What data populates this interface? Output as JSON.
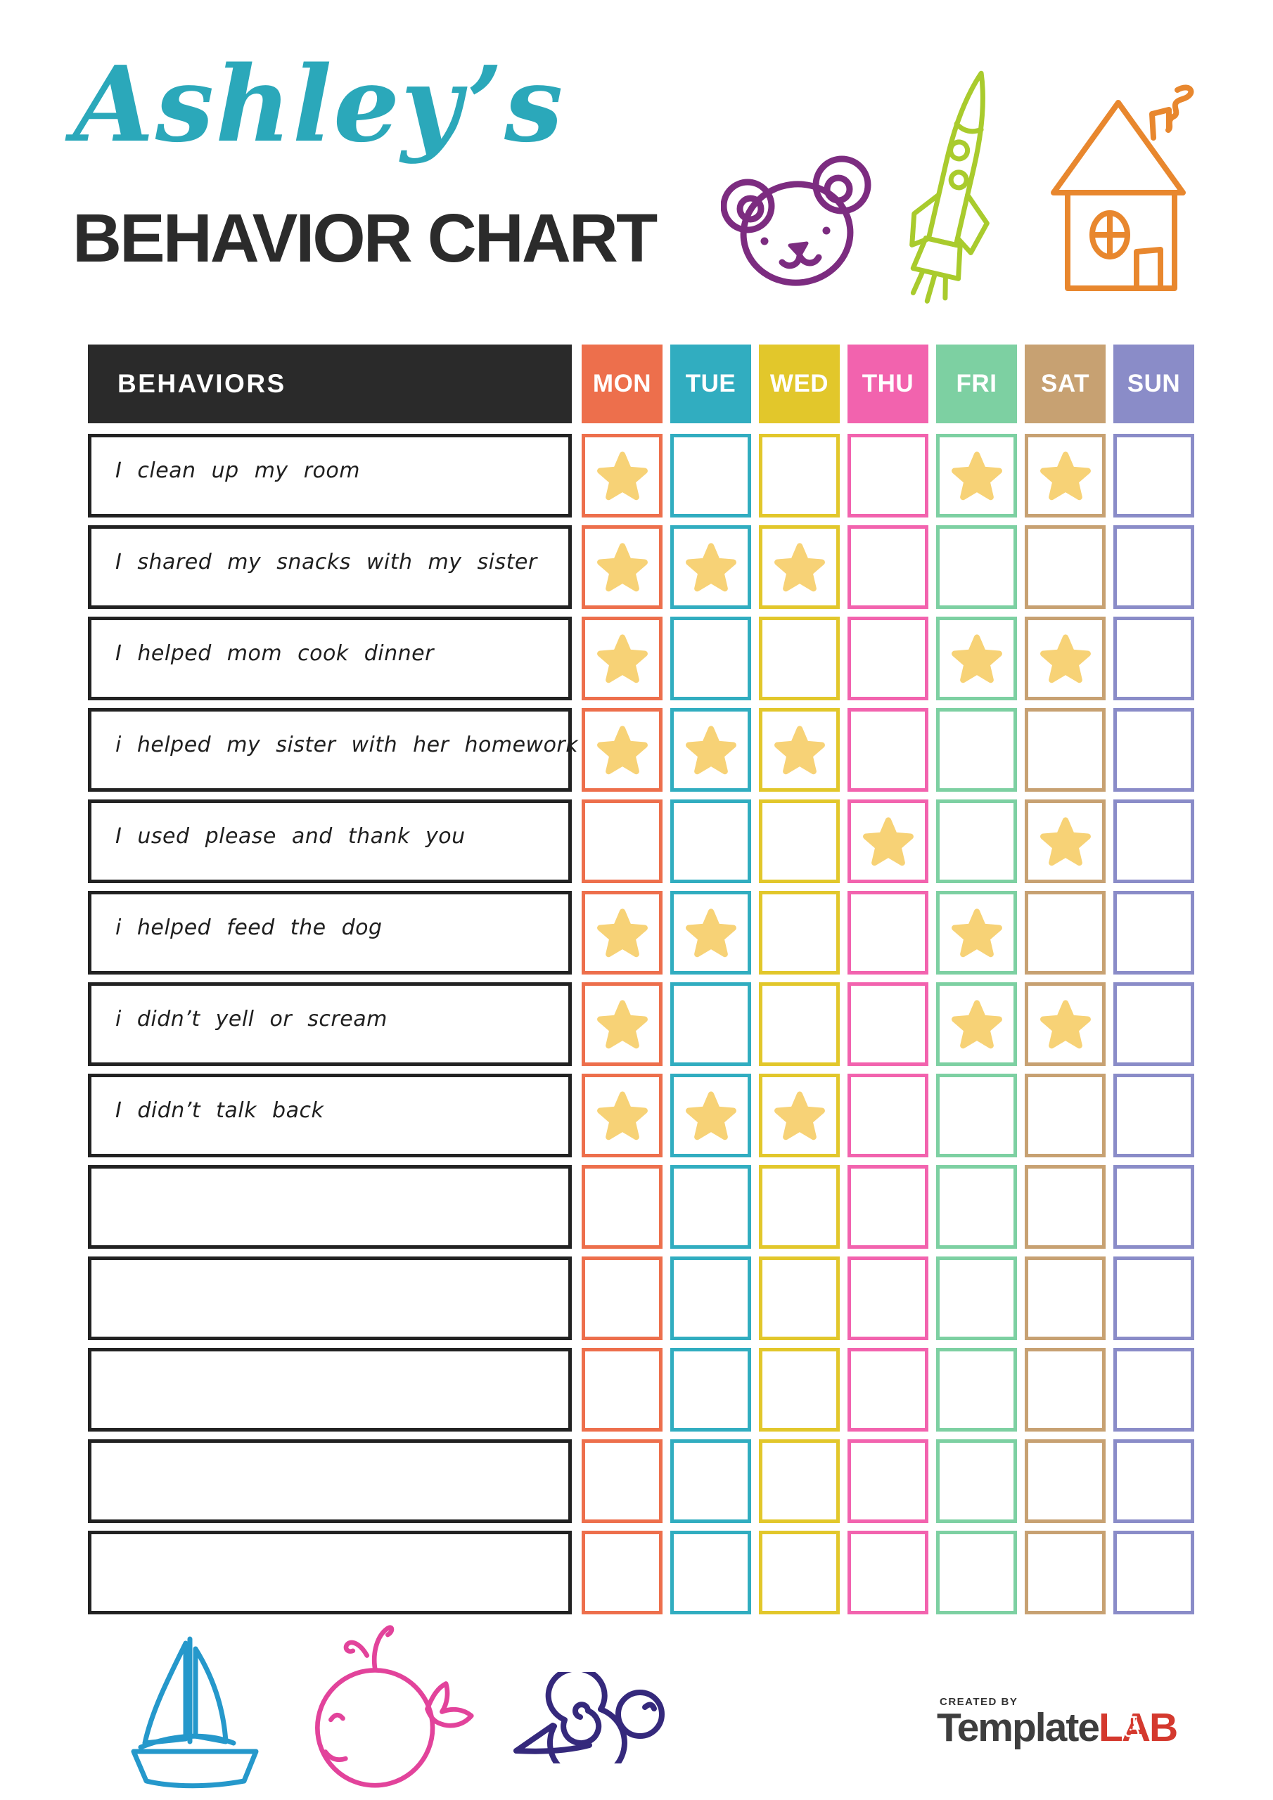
{
  "header": {
    "name": "Ashley’s",
    "title": "BEHAVIOR CHART"
  },
  "decorations": {
    "top_icons": [
      "bear-icon",
      "rocket-icon",
      "house-icon"
    ],
    "bottom_icons": [
      "sailboat-icon",
      "whale-icon",
      "snail-icon"
    ],
    "star_icon": "star-icon"
  },
  "colors": {
    "title_script": "#2ba8ba",
    "title_main": "#2b2b2b",
    "header_bg": "#2a2a2a",
    "row_border": "#222222",
    "star": "#f7d276",
    "bear": "#7c2c80",
    "rocket": "#a9cb2d",
    "house": "#e8872e",
    "sailboat": "#2598cb",
    "whale": "#e2439b",
    "snail": "#35297c",
    "logo_gray": "#3e3e3e",
    "logo_red": "#d4392e"
  },
  "table": {
    "behaviors_header": "BEHAVIORS",
    "days": [
      {
        "label": "MON",
        "color": "#ed6f4c"
      },
      {
        "label": "TUE",
        "color": "#31adc0"
      },
      {
        "label": "WED",
        "color": "#e2c72b"
      },
      {
        "label": "THU",
        "color": "#f263ae"
      },
      {
        "label": "FRI",
        "color": "#7dd0a2"
      },
      {
        "label": "SAT",
        "color": "#c7a172"
      },
      {
        "label": "SUN",
        "color": "#8a8cc8"
      }
    ],
    "rows": [
      {
        "behavior": "I clean up my room",
        "starred_days": [
          "MON",
          "FRI",
          "SAT"
        ]
      },
      {
        "behavior": "I shared my snacks with my sister",
        "starred_days": [
          "MON",
          "TUE",
          "WED"
        ]
      },
      {
        "behavior": "I helped mom cook dinner",
        "starred_days": [
          "MON",
          "FRI",
          "SAT"
        ]
      },
      {
        "behavior": "i helped my sister with her homework",
        "starred_days": [
          "MON",
          "TUE",
          "WED"
        ]
      },
      {
        "behavior": "I used please and thank you",
        "starred_days": [
          "THU",
          "SAT"
        ]
      },
      {
        "behavior": "i helped feed the dog",
        "starred_days": [
          "MON",
          "TUE",
          "FRI"
        ]
      },
      {
        "behavior": "i didn’t yell or scream",
        "starred_days": [
          "MON",
          "FRI",
          "SAT"
        ]
      },
      {
        "behavior": "I didn’t talk back",
        "starred_days": [
          "MON",
          "TUE",
          "WED"
        ]
      },
      {
        "behavior": "",
        "starred_days": []
      },
      {
        "behavior": "",
        "starred_days": []
      },
      {
        "behavior": "",
        "starred_days": []
      },
      {
        "behavior": "",
        "starred_days": []
      },
      {
        "behavior": "",
        "starred_days": []
      }
    ]
  },
  "footer": {
    "created_by": "CREATED BY",
    "brand_part1": "Template",
    "brand_part2": "LAB"
  }
}
